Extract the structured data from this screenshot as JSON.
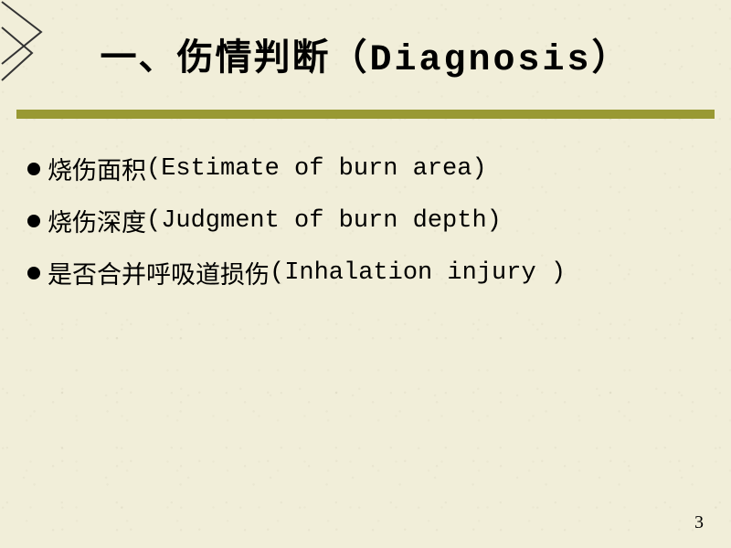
{
  "title": {
    "text_cn": "一、伤情判断",
    "text_en": "（Diagnosis）",
    "fontsize": 40,
    "color": "#000000"
  },
  "underline": {
    "color": "#999933",
    "height": 10
  },
  "bullets": {
    "fontsize": 27,
    "dot_color": "#000000",
    "items": [
      {
        "cn": "烧伤面积",
        "en": "(Estimate of burn area)"
      },
      {
        "cn": "烧伤深度",
        "en": "(Judgment of burn depth)"
      },
      {
        "cn": "是否合并呼吸道损伤",
        "en": "(Inhalation injury )"
      }
    ]
  },
  "page_number": "3",
  "page_number_fontsize": 20,
  "background_color": "#f1eed9",
  "corner": {
    "stroke": "#333333",
    "stroke_width": 2
  }
}
